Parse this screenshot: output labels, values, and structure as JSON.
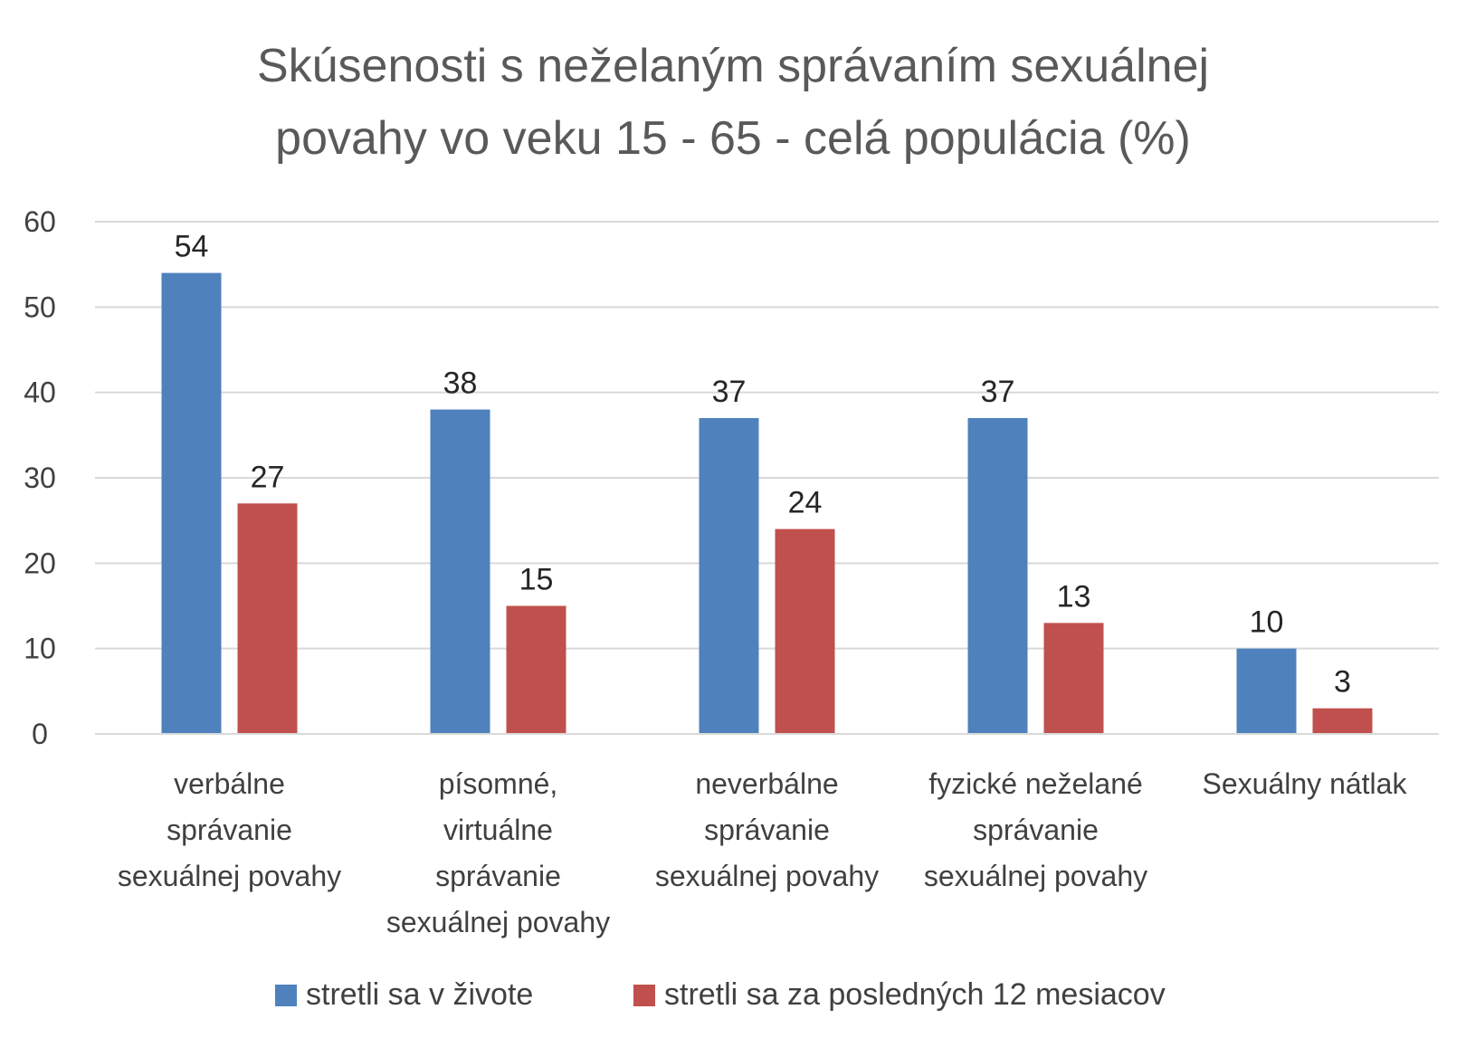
{
  "chart_data": {
    "type": "bar",
    "title_lines": [
      "Skúsenosti s neželaným správaním sexuálnej",
      "povahy vo veku 15 - 65 - celá populácia (%)"
    ],
    "categories": [
      [
        "verbálne",
        "správanie",
        "sexuálnej povahy"
      ],
      [
        "písomné,",
        "virtuálne",
        "správanie",
        "sexuálnej povahy"
      ],
      [
        "neverbálne",
        "správanie",
        "sexuálnej povahy"
      ],
      [
        "fyzické neželané",
        "správanie",
        "sexuálnej povahy"
      ],
      [
        "Sexuálny nátlak"
      ]
    ],
    "series": [
      {
        "name": "stretli sa v živote",
        "color": "#4f81bd",
        "values": [
          54,
          38,
          37,
          37,
          10
        ]
      },
      {
        "name": "stretli sa za posledných 12 mesiacov",
        "color": "#c0504d",
        "values": [
          27,
          15,
          24,
          13,
          3
        ]
      }
    ],
    "yticks": [
      "0",
      "10",
      "20",
      "30",
      "40",
      "50",
      "60"
    ],
    "ylim": [
      0,
      60
    ],
    "grid": true,
    "gridColor": "#d9d9d9",
    "legend_position": "bottom"
  }
}
